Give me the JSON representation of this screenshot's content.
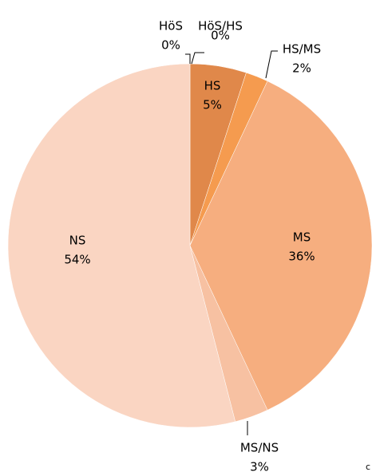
{
  "chart_data": {
    "type": "pie",
    "categories": [
      "HöS",
      "HöS/HS",
      "HS",
      "HS/MS",
      "MS",
      "MS/NS",
      "NS"
    ],
    "values": [
      0,
      0,
      5,
      2,
      36,
      3,
      54
    ],
    "value_labels": [
      "0%",
      "0%",
      "5%",
      "2%",
      "36%",
      "3%",
      "54%"
    ],
    "colors": [
      "#c0632a",
      "#d37538",
      "#e0884a",
      "#f59b4f",
      "#f6ae7f",
      "#f7c1a2",
      "#fad5c2"
    ],
    "footnote": "c"
  }
}
